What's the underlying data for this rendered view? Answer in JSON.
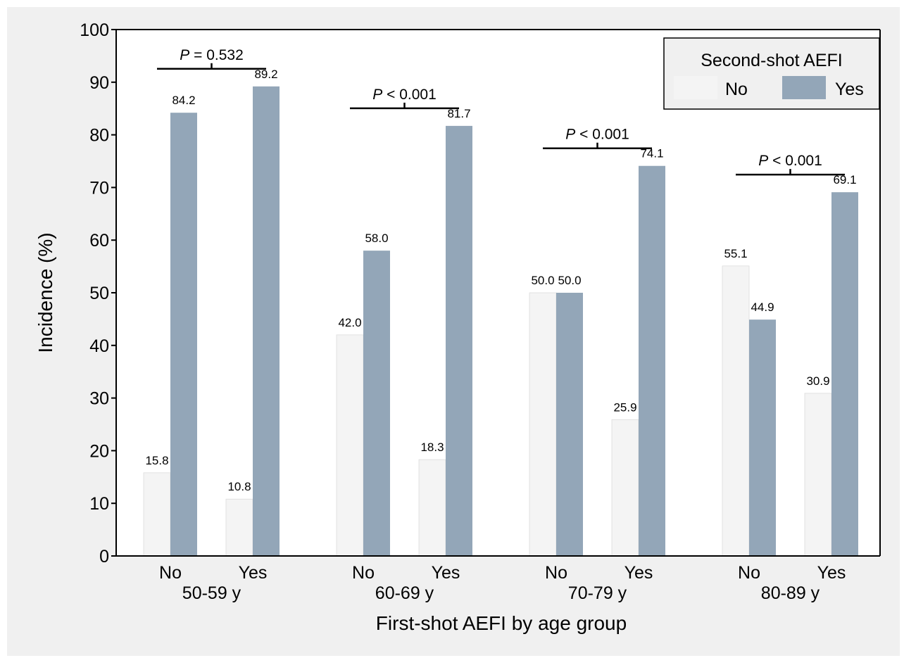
{
  "chart_data": {
    "type": "bar",
    "xlabel": "First-shot AEFI by age group",
    "ylabel": "Incidence (%)",
    "ylim": [
      0,
      100
    ],
    "yticks": [
      "0",
      "10",
      "20",
      "30",
      "40",
      "50",
      "60",
      "70",
      "80",
      "90",
      "100"
    ],
    "grid": false,
    "legend": {
      "title": "Second-shot AEFI",
      "placement": "top-right",
      "entries": [
        "No",
        "Yes"
      ]
    },
    "colors": {
      "No": "#f4f4f4",
      "Yes": "#93a6b8",
      "background": "#f0f0f0"
    },
    "groups": [
      {
        "label": "50-59 y",
        "p_prefix": "P",
        "p_text": " = 0.532",
        "categories": [
          {
            "label": "No",
            "values": [
              15.8,
              84.2
            ],
            "value_labels": [
              "15.8",
              "84.2"
            ]
          },
          {
            "label": "Yes",
            "values": [
              10.8,
              89.2
            ],
            "value_labels": [
              "10.8",
              "89.2"
            ]
          }
        ]
      },
      {
        "label": "60-69 y",
        "p_prefix": "P",
        "p_text": " < 0.001",
        "categories": [
          {
            "label": "No",
            "values": [
              42.0,
              58.0
            ],
            "value_labels": [
              "42.0",
              "58.0"
            ]
          },
          {
            "label": "Yes",
            "values": [
              18.3,
              81.7
            ],
            "value_labels": [
              "18.3",
              "81.7"
            ]
          }
        ]
      },
      {
        "label": "70-79 y",
        "p_prefix": "P",
        "p_text": " < 0.001",
        "categories": [
          {
            "label": "No",
            "values": [
              50.0,
              50.0
            ],
            "value_labels": [
              "50.0",
              "50.0"
            ]
          },
          {
            "label": "Yes",
            "values": [
              25.9,
              74.1
            ],
            "value_labels": [
              "25.9",
              "74.1"
            ]
          }
        ]
      },
      {
        "label": "80-89 y",
        "p_prefix": "P",
        "p_text": " < 0.001",
        "categories": [
          {
            "label": "No",
            "values": [
              55.1,
              44.9
            ],
            "value_labels": [
              "55.1",
              "44.9"
            ]
          },
          {
            "label": "Yes",
            "values": [
              30.9,
              69.1
            ],
            "value_labels": [
              "30.9",
              "69.1"
            ]
          }
        ]
      }
    ]
  }
}
